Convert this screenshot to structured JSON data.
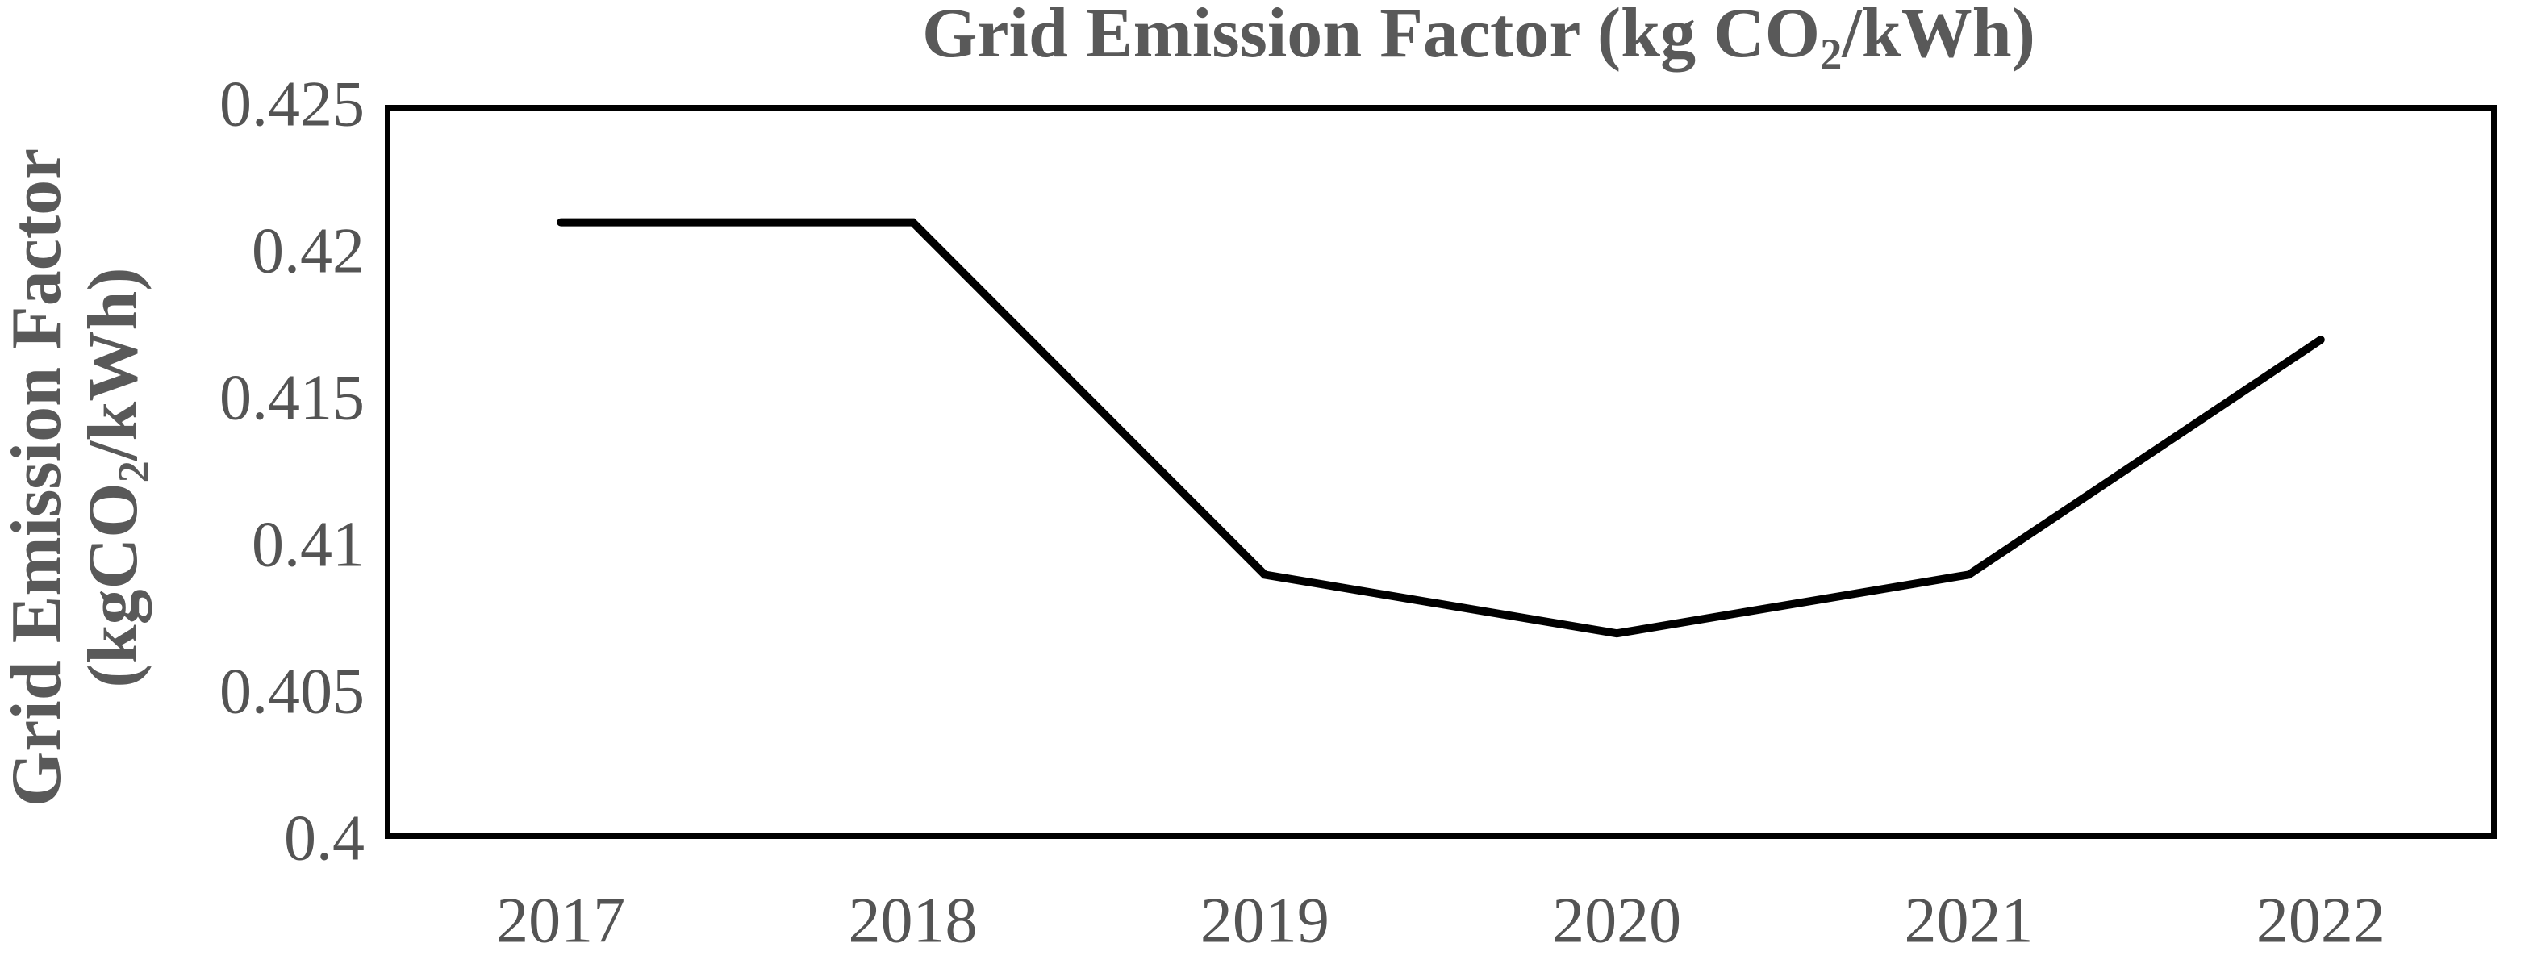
{
  "chart_data": {
    "type": "line",
    "title": "Grid Emission Factor (kg CO2/kWh)",
    "title_parts": {
      "prefix": "Grid Emission Factor (kg CO",
      "subscript": "2",
      "suffix": "/kWh)"
    },
    "y_axis_title": "Grid Emission Factor (kgCO2/kWh)",
    "y_axis_title_parts": {
      "line1": "Grid Emission Factor",
      "line2_prefix": "(kgCO",
      "line2_subscript": "2",
      "line2_suffix": "/kWh)"
    },
    "xlabel": "",
    "categories": [
      "2017",
      "2018",
      "2019",
      "2020",
      "2021",
      "2022"
    ],
    "values": [
      0.421,
      0.421,
      0.409,
      0.407,
      0.409,
      0.417
    ],
    "series_name": "Grid Emission Factor",
    "ylim": [
      0.4,
      0.425
    ],
    "y_ticks": [
      {
        "label": "0.425",
        "value": 0.425
      },
      {
        "label": "0.42",
        "value": 0.42
      },
      {
        "label": "0.415",
        "value": 0.415
      },
      {
        "label": "0.41",
        "value": 0.41
      },
      {
        "label": "0.405",
        "value": 0.405
      },
      {
        "label": "0.4",
        "value": 0.4
      }
    ],
    "grid": false,
    "legend": "none",
    "colors": {
      "line_color": "#000000",
      "border_color": "#000000",
      "title_text_color": "#595959",
      "tick_text_color": "#545454",
      "background_color": "#ffffff"
    }
  }
}
